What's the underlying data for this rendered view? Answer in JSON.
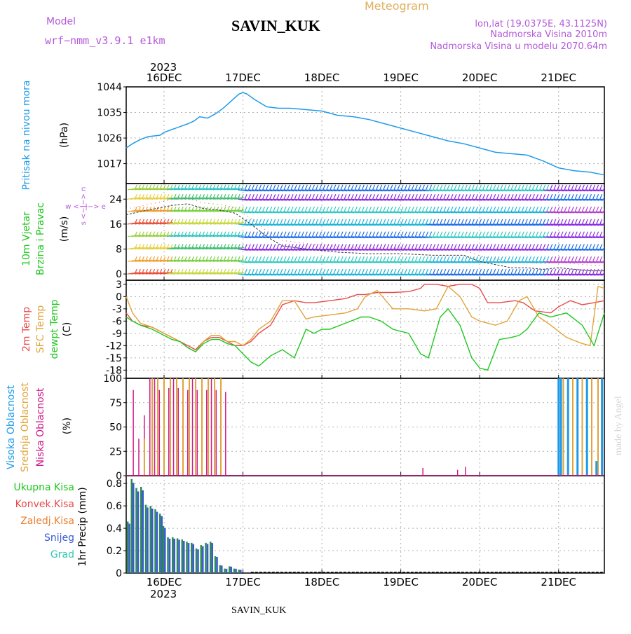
{
  "header": {
    "model_label": "Model",
    "model_name": "wrf−nmm_v3.9.1  e1km",
    "station": "SAVIN_KUK",
    "product": "Meteogram",
    "coords": "lon,lat (19.0375E, 43.1125N)",
    "elevation": "Nadmorska Visina 2010m",
    "model_elevation": "Nadmorska Visina u modelu 2070.64m",
    "year": "2023",
    "footer_station": "SAVIN_KUK",
    "credit": "made by Angel"
  },
  "colors": {
    "pressure": "#1e9be8",
    "temp2m": "#e84a4a",
    "sfc": "#e0a43a",
    "dewpt": "#1ec81e",
    "high_cloud": "#1e9be8",
    "mid_cloud": "#e0a43a",
    "low_cloud": "#d01c8b",
    "precip_total": "#2e8b57",
    "snow": "#3a5bd0",
    "grid": "#b0b0b0"
  },
  "x_axis": {
    "day_labels": [
      "16DEC",
      "17DEC",
      "18DEC",
      "19DEC",
      "20DEC",
      "21DEC"
    ],
    "day_positions": [
      1,
      2,
      3,
      4,
      5,
      6
    ],
    "range": [
      0.52,
      6.58
    ]
  },
  "chart_data": [
    {
      "type": "line",
      "panel": "pressure",
      "ylabel_1": "Pritisak na nivou mora",
      "ylabel_2": "(hPa)",
      "yticks": [
        "1017",
        "1026",
        "1035",
        "1044"
      ],
      "ylim": [
        1010,
        1044
      ],
      "series": [
        {
          "x": [
            0.52,
            0.6,
            0.7,
            0.8,
            0.95,
            1.0,
            1.1,
            1.2,
            1.3,
            1.38,
            1.45,
            1.55,
            1.65,
            1.75,
            1.85,
            1.95,
            2.0,
            2.05,
            2.15,
            2.3,
            2.45,
            2.6,
            2.8,
            3.0,
            3.2,
            3.4,
            3.6,
            3.8,
            4.0,
            4.2,
            4.4,
            4.6,
            4.8,
            5.0,
            5.2,
            5.4,
            5.6,
            5.8,
            6.0,
            6.2,
            6.4,
            6.58
          ],
          "y": [
            1022.5,
            1024,
            1025.5,
            1026.5,
            1027,
            1028,
            1029,
            1030,
            1031,
            1032,
            1033.5,
            1033,
            1034.5,
            1036.5,
            1039,
            1041.5,
            1042,
            1041.5,
            1039.5,
            1037,
            1036.5,
            1036.5,
            1036,
            1035.5,
            1034,
            1033.5,
            1032.5,
            1031,
            1029.5,
            1028,
            1026.5,
            1025,
            1024,
            1022.5,
            1021,
            1020.5,
            1020,
            1018,
            1015.5,
            1014.5,
            1014,
            1013
          ]
        }
      ]
    },
    {
      "type": "line",
      "panel": "wind",
      "ylabel_1": "10m Vjetar",
      "ylabel_2": "Brzina i Pravac",
      "ylabel_3": "(m/s)",
      "compass": "w <−|−> e",
      "compass_v": "s <−|−> n",
      "yticks": [
        "0",
        "8",
        "16",
        "24"
      ],
      "ylim": [
        -2,
        29
      ],
      "series": [
        {
          "name": "speed",
          "x": [
            0.52,
            0.7,
            0.9,
            1.1,
            1.3,
            1.5,
            1.7,
            1.9,
            2.1,
            2.3,
            2.5,
            2.8,
            3.2,
            3.6,
            4.0,
            4.4,
            4.8,
            5.0,
            5.2,
            5.4,
            5.6,
            5.8,
            6.0,
            6.2,
            6.4,
            6.58
          ],
          "y": [
            19,
            20,
            21,
            22,
            22.5,
            21,
            20.5,
            19.5,
            16,
            12,
            9,
            8,
            7,
            6.5,
            6.5,
            6,
            6,
            4,
            3,
            2,
            2,
            1.5,
            2,
            1.5,
            1,
            1
          ]
        }
      ]
    },
    {
      "type": "line",
      "panel": "temperature",
      "series_labels": [
        "2m Temp",
        "SFC Temp",
        "dewpt Temp"
      ],
      "ylabel_unit": "(C)",
      "yticks": [
        "3",
        "0",
        "-3",
        "-6",
        "-9",
        "-12",
        "-15",
        "-18"
      ],
      "ylim": [
        -20,
        4
      ],
      "series": [
        {
          "name": "2m Temp",
          "x": [
            0.52,
            0.6,
            0.7,
            0.85,
            1.0,
            1.1,
            1.2,
            1.3,
            1.4,
            1.5,
            1.6,
            1.7,
            1.8,
            1.9,
            2.0,
            2.1,
            2.2,
            2.35,
            2.5,
            2.65,
            2.8,
            2.9,
            3.1,
            3.3,
            3.45,
            3.55,
            3.7,
            3.9,
            4.1,
            4.25,
            4.3,
            4.45,
            4.6,
            4.75,
            4.9,
            5.0,
            5.1,
            5.25,
            5.45,
            5.55,
            5.7,
            5.9,
            6.0,
            6.15,
            6.3,
            6.45,
            6.58
          ],
          "y": [
            -4,
            -6,
            -7,
            -7.5,
            -9,
            -10,
            -11,
            -12,
            -13,
            -11,
            -10,
            -10,
            -11,
            -12,
            -12,
            -11,
            -9,
            -7,
            -2,
            -1,
            -1.5,
            -1.5,
            -1,
            -0.5,
            0.5,
            0.5,
            1,
            1,
            1.2,
            2,
            3,
            3,
            2.5,
            3,
            3,
            2,
            -1.5,
            -1.5,
            -1,
            -1.5,
            -3.5,
            -4,
            -2.5,
            -1,
            -2,
            -1.5,
            -1
          ]
        },
        {
          "name": "SFC Temp",
          "x": [
            0.52,
            0.6,
            0.7,
            0.85,
            1.0,
            1.1,
            1.2,
            1.3,
            1.4,
            1.5,
            1.6,
            1.7,
            1.8,
            1.9,
            2.0,
            2.1,
            2.2,
            2.35,
            2.5,
            2.65,
            2.8,
            2.9,
            3.1,
            3.3,
            3.45,
            3.55,
            3.7,
            3.9,
            4.1,
            4.3,
            4.45,
            4.6,
            4.75,
            4.9,
            5.0,
            5.2,
            5.35,
            5.5,
            5.6,
            5.75,
            5.9,
            6.1,
            6.3,
            6.4,
            6.5,
            6.58
          ],
          "y": [
            0,
            -4,
            -6.5,
            -7.5,
            -9,
            -10,
            -11,
            -12.5,
            -13.5,
            -11,
            -9.5,
            -9.5,
            -11,
            -11,
            -12,
            -10.5,
            -8,
            -6,
            -1,
            -1,
            -5.5,
            -5,
            -4.5,
            -4,
            -3,
            0,
            1.5,
            -3,
            -3,
            -3.5,
            -3,
            2.5,
            0,
            -5,
            -6,
            -7,
            -6,
            -1,
            0,
            -5,
            -7,
            -10,
            -11.5,
            -12,
            2.5,
            2
          ]
        },
        {
          "name": "dewpt Temp",
          "x": [
            0.52,
            0.6,
            0.7,
            0.85,
            1.0,
            1.1,
            1.2,
            1.3,
            1.4,
            1.5,
            1.6,
            1.7,
            1.8,
            1.9,
            2.0,
            2.1,
            2.2,
            2.35,
            2.5,
            2.65,
            2.8,
            2.9,
            3.0,
            3.1,
            3.3,
            3.5,
            3.6,
            3.75,
            3.9,
            4.1,
            4.25,
            4.35,
            4.5,
            4.6,
            4.75,
            4.9,
            5.0,
            5.1,
            5.25,
            5.4,
            5.5,
            5.6,
            5.75,
            5.9,
            6.1,
            6.3,
            6.45,
            6.58
          ],
          "y": [
            -5,
            -6,
            -7,
            -8,
            -9.5,
            -10.5,
            -11,
            -12.5,
            -13.5,
            -11.5,
            -10.5,
            -10.5,
            -11.5,
            -12,
            -14,
            -16,
            -17,
            -14.5,
            -13,
            -15,
            -8,
            -9,
            -8,
            -8,
            -6.5,
            -5,
            -5,
            -6,
            -8,
            -9,
            -14,
            -15,
            -5,
            -3,
            -7,
            -15,
            -17.5,
            -18,
            -10.5,
            -10,
            -9.5,
            -8,
            -4,
            -5,
            -4,
            -7,
            -12,
            -4
          ]
        }
      ]
    },
    {
      "type": "bar",
      "panel": "clouds",
      "series_labels": [
        "Visoka Oblacnost",
        "Srednja Oblacnost",
        "Niska Oblacnost"
      ],
      "ylabel_unit": "(%)",
      "yticks": [
        "0",
        "25",
        "50",
        "75",
        "100"
      ],
      "ylim": [
        0,
        100
      ],
      "series": [
        {
          "name": "Niska",
          "x": [
            0.61,
            0.68,
            0.75,
            0.82,
            0.88,
            0.94,
            1.0,
            1.06,
            1.12,
            1.18,
            1.24,
            1.3,
            1.36,
            1.42,
            1.48,
            1.54,
            1.6,
            1.66,
            1.72,
            1.78,
            4.28,
            4.72,
            4.82
          ],
          "y": [
            88,
            38,
            62,
            100,
            100,
            88,
            100,
            90,
            100,
            90,
            100,
            88,
            100,
            88,
            100,
            88,
            100,
            88,
            87,
            86,
            8,
            6,
            9
          ]
        },
        {
          "name": "Srednja",
          "x": [
            0.75,
            0.85,
            0.92,
            1.0,
            1.08,
            1.16,
            1.24,
            1.32,
            1.4,
            1.48,
            1.56,
            1.64,
            1.72,
            6.06,
            6.18,
            6.3,
            6.42,
            6.5
          ],
          "y": [
            38,
            100,
            100,
            100,
            100,
            100,
            100,
            100,
            100,
            100,
            100,
            100,
            100,
            100,
            100,
            100,
            100,
            100
          ]
        },
        {
          "name": "Visoka",
          "x": [
            6.0,
            6.03,
            6.12,
            6.24,
            6.36,
            6.48,
            6.55
          ],
          "y": [
            100,
            100,
            100,
            100,
            100,
            15,
            100
          ]
        }
      ]
    },
    {
      "type": "bar",
      "panel": "precip",
      "series_labels": [
        "Ukupna Kisa",
        "Konvek.Kisa",
        "Zaledj.Kisa",
        "Snijeg",
        "Grad"
      ],
      "ylabel": "1hr Precip (mm)",
      "yticks": [
        "0",
        "0.2",
        "0.4",
        "0.6",
        "0.8"
      ],
      "ylim": [
        0,
        0.87
      ],
      "series": [
        {
          "name": "Snijeg",
          "x": [
            0.55,
            0.6,
            0.66,
            0.72,
            0.78,
            0.84,
            0.9,
            0.96,
            1.0,
            1.06,
            1.12,
            1.18,
            1.24,
            1.3,
            1.36,
            1.42,
            1.48,
            1.54,
            1.6,
            1.66,
            1.72,
            1.78,
            1.84,
            1.9,
            1.96
          ],
          "y": [
            0.46,
            0.84,
            0.76,
            0.77,
            0.61,
            0.6,
            0.57,
            0.53,
            0.42,
            0.32,
            0.32,
            0.31,
            0.3,
            0.28,
            0.27,
            0.22,
            0.25,
            0.27,
            0.28,
            0.15,
            0.07,
            0.04,
            0.06,
            0.04,
            0.03
          ]
        }
      ]
    }
  ]
}
